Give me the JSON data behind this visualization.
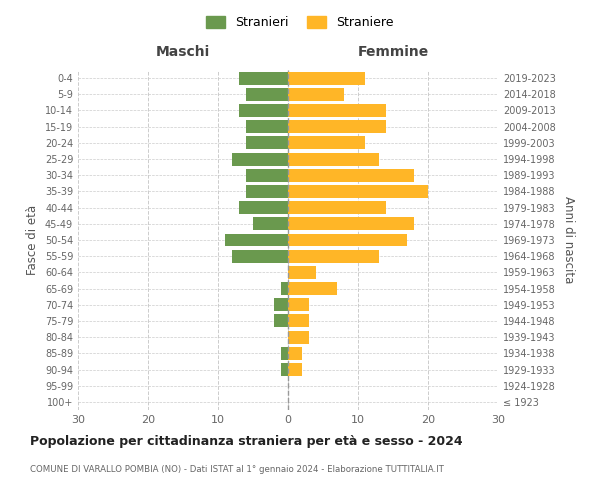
{
  "age_groups": [
    "100+",
    "95-99",
    "90-94",
    "85-89",
    "80-84",
    "75-79",
    "70-74",
    "65-69",
    "60-64",
    "55-59",
    "50-54",
    "45-49",
    "40-44",
    "35-39",
    "30-34",
    "25-29",
    "20-24",
    "15-19",
    "10-14",
    "5-9",
    "0-4"
  ],
  "birth_years": [
    "≤ 1923",
    "1924-1928",
    "1929-1933",
    "1934-1938",
    "1939-1943",
    "1944-1948",
    "1949-1953",
    "1954-1958",
    "1959-1963",
    "1964-1968",
    "1969-1973",
    "1974-1978",
    "1979-1983",
    "1984-1988",
    "1989-1993",
    "1994-1998",
    "1999-2003",
    "2004-2008",
    "2009-2013",
    "2014-2018",
    "2019-2023"
  ],
  "males": [
    0,
    0,
    1,
    1,
    0,
    2,
    2,
    1,
    0,
    8,
    9,
    5,
    7,
    6,
    6,
    8,
    6,
    6,
    7,
    6,
    7
  ],
  "females": [
    0,
    0,
    2,
    2,
    3,
    3,
    3,
    7,
    4,
    13,
    17,
    18,
    14,
    20,
    18,
    13,
    11,
    14,
    14,
    8,
    11
  ],
  "male_color": "#6a994e",
  "female_color": "#ffb627",
  "title": "Popolazione per cittadinanza straniera per età e sesso - 2024",
  "subtitle": "COMUNE DI VARALLO POMBIA (NO) - Dati ISTAT al 1° gennaio 2024 - Elaborazione TUTTITALIA.IT",
  "left_label": "Maschi",
  "right_label": "Femmine",
  "left_axis_label": "Fasce di età",
  "right_axis_label": "Anni di nascita",
  "legend_male": "Stranieri",
  "legend_female": "Straniere",
  "xlim": 30,
  "background_color": "#ffffff",
  "grid_color": "#cccccc",
  "bar_height": 0.8
}
